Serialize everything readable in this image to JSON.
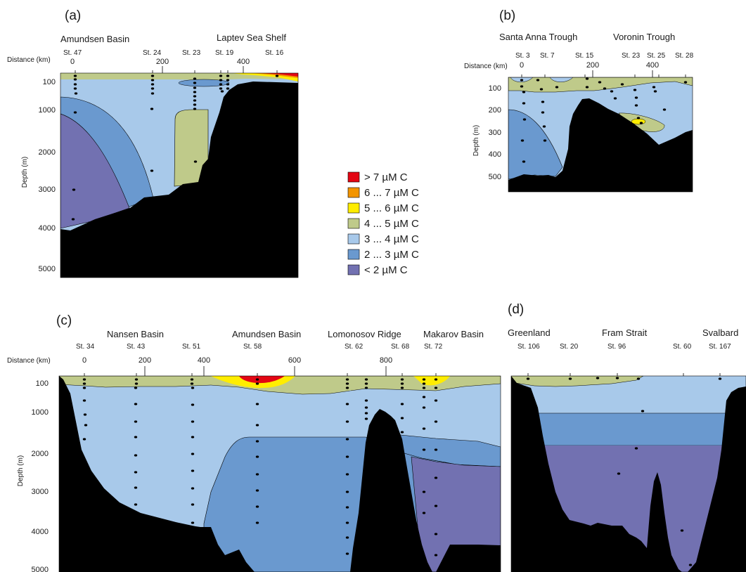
{
  "colors": {
    "c7": "#e30613",
    "c67": "#f29400",
    "c56": "#ffed00",
    "c45": "#bfca8a",
    "c34": "#a8c9ea",
    "c23": "#6a99cf",
    "c2": "#7271b1",
    "bathy": "#000000"
  },
  "legend": [
    {
      "label": "> 7 µM C",
      "color_key": "c7"
    },
    {
      "label": "6 ... 7 µM C",
      "color_key": "c67"
    },
    {
      "label": "5 ... 6 µM C",
      "color_key": "c56"
    },
    {
      "label": "4 ... 5 µM C",
      "color_key": "c45"
    },
    {
      "label": "3 ... 4 µM C",
      "color_key": "c34"
    },
    {
      "label": "2 ... 3 µM C",
      "color_key": "c23"
    },
    {
      "label": "< 2 µM C",
      "color_key": "c2"
    }
  ],
  "chart_data": [
    {
      "type": "area",
      "panel": "(a)",
      "regions": [
        "Amundsen Basin",
        "Laptev Sea Shelf"
      ],
      "stations": [
        "St. 47",
        "St. 24",
        "St. 23",
        "St. 19",
        "St. 16"
      ],
      "station_distance_km": [
        0,
        220,
        340,
        420,
        560
      ],
      "xlabel": "Distance (km)",
      "x_ticks": [
        "0",
        "200",
        "400"
      ],
      "ylabel": "Depth (m)",
      "y_ticks": [
        "100",
        "1000",
        "2000",
        "3000",
        "4000",
        "5000"
      ]
    },
    {
      "type": "area",
      "panel": "(b)",
      "regions": [
        "Santa Anna Trough",
        "Voronin Trough"
      ],
      "stations": [
        "St. 3",
        "St. 7",
        "St. 15",
        "St. 23",
        "St. 25",
        "St. 28"
      ],
      "station_distance_km": [
        0,
        130,
        320,
        520,
        640,
        820
      ],
      "xlabel": "Distance (km)",
      "x_ticks": [
        "0",
        "200",
        "400"
      ],
      "ylabel": "Depth (m)",
      "y_ticks": [
        "100",
        "200",
        "300",
        "400",
        "500"
      ]
    },
    {
      "type": "area",
      "panel": "(c)",
      "regions": [
        "Nansen Basin",
        "Amundsen Basin",
        "Lomonosov Ridge",
        "Makarov Basin"
      ],
      "stations": [
        "St. 34",
        "St. 43",
        "St. 51",
        "St. 58",
        "St. 62",
        "St. 68",
        "St. 72"
      ],
      "station_distance_km": [
        0,
        180,
        370,
        580,
        770,
        860,
        920
      ],
      "xlabel": "Distance (km)",
      "x_ticks": [
        "0",
        "200",
        "400",
        "600",
        "800"
      ],
      "ylabel": "Depth (m)",
      "y_ticks": [
        "100",
        "1000",
        "2000",
        "3000",
        "4000",
        "5000"
      ]
    },
    {
      "type": "area",
      "panel": "(d)",
      "regions": [
        "Greenland",
        "Fram Strait",
        "Svalbard"
      ],
      "stations": [
        "St. 106",
        "St. 20",
        "St. 96",
        "St. 60",
        "St. 167"
      ],
      "y_ticks": []
    }
  ]
}
